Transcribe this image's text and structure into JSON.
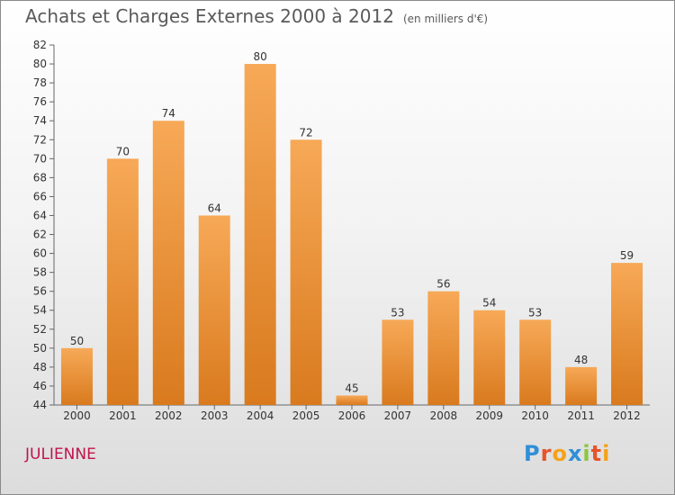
{
  "title": "Achats et Charges Externes 2000 à 2012",
  "subtitle": "(en milliers d'€)",
  "commune": "JULIENNE",
  "logo": {
    "letters": [
      {
        "ch": "P",
        "color": "#2f8fd8"
      },
      {
        "ch": "r",
        "color": "#e6532a"
      },
      {
        "ch": "o",
        "color": "#f4a21a"
      },
      {
        "ch": "x",
        "color": "#2f8fd8"
      },
      {
        "ch": "i",
        "color": "#8cc63f"
      },
      {
        "ch": "t",
        "color": "#e6532a"
      },
      {
        "ch": "i",
        "color": "#f4a21a"
      }
    ]
  },
  "chart_data": {
    "type": "bar",
    "categories": [
      "2000",
      "2001",
      "2002",
      "2003",
      "2004",
      "2005",
      "2006",
      "2007",
      "2008",
      "2009",
      "2010",
      "2011",
      "2012"
    ],
    "values": [
      50,
      70,
      74,
      64,
      80,
      72,
      45,
      53,
      56,
      54,
      53,
      48,
      59
    ],
    "ylim": [
      44,
      82
    ],
    "yticks": [
      44,
      46,
      48,
      50,
      52,
      54,
      56,
      58,
      60,
      62,
      64,
      66,
      68,
      70,
      72,
      74,
      76,
      78,
      80,
      82
    ],
    "grid": false,
    "bar_color_light": "#f7a957",
    "bar_color_dark": "#d97a1e"
  }
}
